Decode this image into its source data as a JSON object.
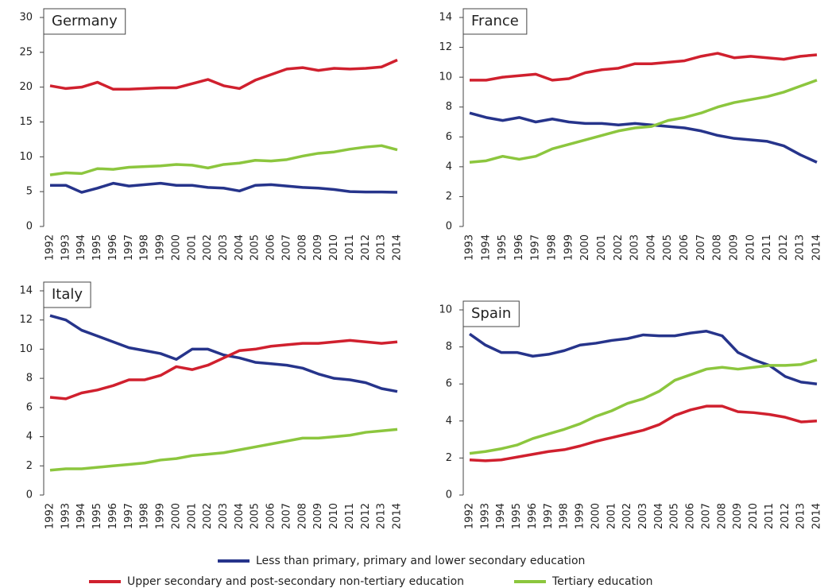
{
  "chart_data": [
    {
      "type": "line",
      "title": "Germany",
      "categories": [
        "1992",
        "1993",
        "1994",
        "1995",
        "1996",
        "1997",
        "1998",
        "1999",
        "2000",
        "2001",
        "2002",
        "2003",
        "2004",
        "2005",
        "2006",
        "2007",
        "2008",
        "2009",
        "2010",
        "2011",
        "2012",
        "2013",
        "2014"
      ],
      "ylim": [
        0,
        30
      ],
      "yticks": [
        0,
        5,
        10,
        15,
        20,
        25,
        30
      ],
      "series": [
        {
          "color": "#26348b",
          "values": [
            5.9,
            5.9,
            4.9,
            5.5,
            6.2,
            5.8,
            6.0,
            6.2,
            5.9,
            5.9,
            5.6,
            5.5,
            5.1,
            5.9,
            6.0,
            5.8,
            5.6,
            5.5,
            5.3,
            5.0,
            4.95,
            4.95,
            4.9
          ]
        },
        {
          "color": "#d0202e",
          "values": [
            20.2,
            19.8,
            20.0,
            20.7,
            19.7,
            19.7,
            19.8,
            19.9,
            19.9,
            20.5,
            21.1,
            20.2,
            19.8,
            21.0,
            21.8,
            22.6,
            22.8,
            22.4,
            22.7,
            22.6,
            22.7,
            22.9,
            23.9
          ]
        },
        {
          "color": "#8cc63e",
          "values": [
            7.4,
            7.7,
            7.6,
            8.3,
            8.2,
            8.5,
            8.6,
            8.7,
            8.9,
            8.8,
            8.4,
            8.9,
            9.1,
            9.5,
            9.4,
            9.6,
            10.1,
            10.5,
            10.7,
            11.1,
            11.4,
            11.6,
            11.0
          ]
        }
      ]
    },
    {
      "type": "line",
      "title": "France",
      "categories": [
        "1993",
        "1994",
        "1995",
        "1996",
        "1997",
        "1998",
        "1999",
        "2000",
        "2001",
        "2002",
        "2003",
        "2004",
        "2005",
        "2006",
        "2007",
        "2008",
        "2009",
        "2010",
        "2011",
        "2012",
        "2013",
        "2014"
      ],
      "ylim": [
        0,
        14
      ],
      "yticks": [
        0,
        2,
        4,
        6,
        8,
        10,
        12,
        14
      ],
      "series": [
        {
          "color": "#26348b",
          "values": [
            7.6,
            7.3,
            7.1,
            7.3,
            7.0,
            7.2,
            7.0,
            6.9,
            6.9,
            6.8,
            6.9,
            6.8,
            6.7,
            6.6,
            6.4,
            6.1,
            5.9,
            5.8,
            5.7,
            5.4,
            4.8,
            4.3
          ]
        },
        {
          "color": "#d0202e",
          "values": [
            9.8,
            9.8,
            10.0,
            10.1,
            10.2,
            9.8,
            9.9,
            10.3,
            10.5,
            10.6,
            10.9,
            10.9,
            11.0,
            11.1,
            11.4,
            11.6,
            11.3,
            11.4,
            11.3,
            11.2,
            11.4,
            11.5
          ]
        },
        {
          "color": "#8cc63e",
          "values": [
            4.3,
            4.4,
            4.7,
            4.5,
            4.7,
            5.2,
            5.5,
            5.8,
            6.1,
            6.4,
            6.6,
            6.7,
            7.1,
            7.3,
            7.6,
            8.0,
            8.3,
            8.5,
            8.7,
            9.0,
            9.4,
            9.8
          ]
        }
      ]
    },
    {
      "type": "line",
      "title": "Italy",
      "categories": [
        "1992",
        "1993",
        "1994",
        "1995",
        "1996",
        "1997",
        "1998",
        "1999",
        "2000",
        "2001",
        "2002",
        "2003",
        "2004",
        "2005",
        "2006",
        "2007",
        "2008",
        "2009",
        "2010",
        "2011",
        "2012",
        "2013",
        "2014"
      ],
      "ylim": [
        0,
        14
      ],
      "yticks": [
        0,
        2,
        4,
        6,
        8,
        10,
        12,
        14
      ],
      "series": [
        {
          "color": "#26348b",
          "values": [
            12.3,
            12.0,
            11.3,
            10.9,
            10.5,
            10.1,
            9.9,
            9.7,
            9.3,
            10.0,
            10.0,
            9.6,
            9.4,
            9.1,
            9.0,
            8.9,
            8.7,
            8.3,
            8.0,
            7.9,
            7.7,
            7.3,
            7.1
          ]
        },
        {
          "color": "#d0202e",
          "values": [
            6.7,
            6.6,
            7.0,
            7.2,
            7.5,
            7.9,
            7.9,
            8.2,
            8.8,
            8.6,
            8.9,
            9.4,
            9.9,
            10.0,
            10.2,
            10.3,
            10.4,
            10.4,
            10.5,
            10.6,
            10.5,
            10.4,
            10.5
          ]
        },
        {
          "color": "#8cc63e",
          "values": [
            1.7,
            1.8,
            1.8,
            1.9,
            2.0,
            2.1,
            2.2,
            2.4,
            2.5,
            2.7,
            2.8,
            2.9,
            3.1,
            3.3,
            3.5,
            3.7,
            3.9,
            3.9,
            4.0,
            4.1,
            4.3,
            4.4,
            4.5
          ]
        }
      ]
    },
    {
      "type": "line",
      "title": "Spain",
      "categories": [
        "1992",
        "1993",
        "1994",
        "1995",
        "1996",
        "1997",
        "1998",
        "1999",
        "2000",
        "2001",
        "2002",
        "2003",
        "2004",
        "2005",
        "2006",
        "2007",
        "2008",
        "2009",
        "2010",
        "2011",
        "2012",
        "2013",
        "2014"
      ],
      "ylim": [
        0,
        10
      ],
      "yticks": [
        0,
        2,
        4,
        6,
        8,
        10
      ],
      "series": [
        {
          "color": "#26348b",
          "values": [
            8.7,
            8.1,
            7.7,
            7.7,
            7.5,
            7.6,
            7.8,
            8.1,
            8.2,
            8.35,
            8.45,
            8.65,
            8.6,
            8.6,
            8.75,
            8.85,
            8.6,
            7.7,
            7.3,
            7.0,
            6.4,
            6.1,
            6.0
          ]
        },
        {
          "color": "#d0202e",
          "values": [
            1.9,
            1.85,
            1.9,
            2.05,
            2.2,
            2.35,
            2.45,
            2.65,
            2.9,
            3.1,
            3.3,
            3.5,
            3.8,
            4.3,
            4.6,
            4.8,
            4.8,
            4.5,
            4.45,
            4.35,
            4.2,
            3.95,
            4.0
          ]
        },
        {
          "color": "#8cc63e",
          "values": [
            2.25,
            2.35,
            2.5,
            2.7,
            3.05,
            3.3,
            3.55,
            3.85,
            4.25,
            4.55,
            4.95,
            5.2,
            5.6,
            6.2,
            6.5,
            6.8,
            6.9,
            6.8,
            6.9,
            7.0,
            7.0,
            7.05,
            7.3
          ]
        }
      ]
    }
  ],
  "legend": [
    {
      "name": "Less than primary, primary and lower secondary education",
      "color": "#26348b"
    },
    {
      "name": "Upper secondary and post-secondary non-tertiary education",
      "color": "#d0202e"
    },
    {
      "name": "Tertiary education",
      "color": "#8cc63e"
    }
  ]
}
